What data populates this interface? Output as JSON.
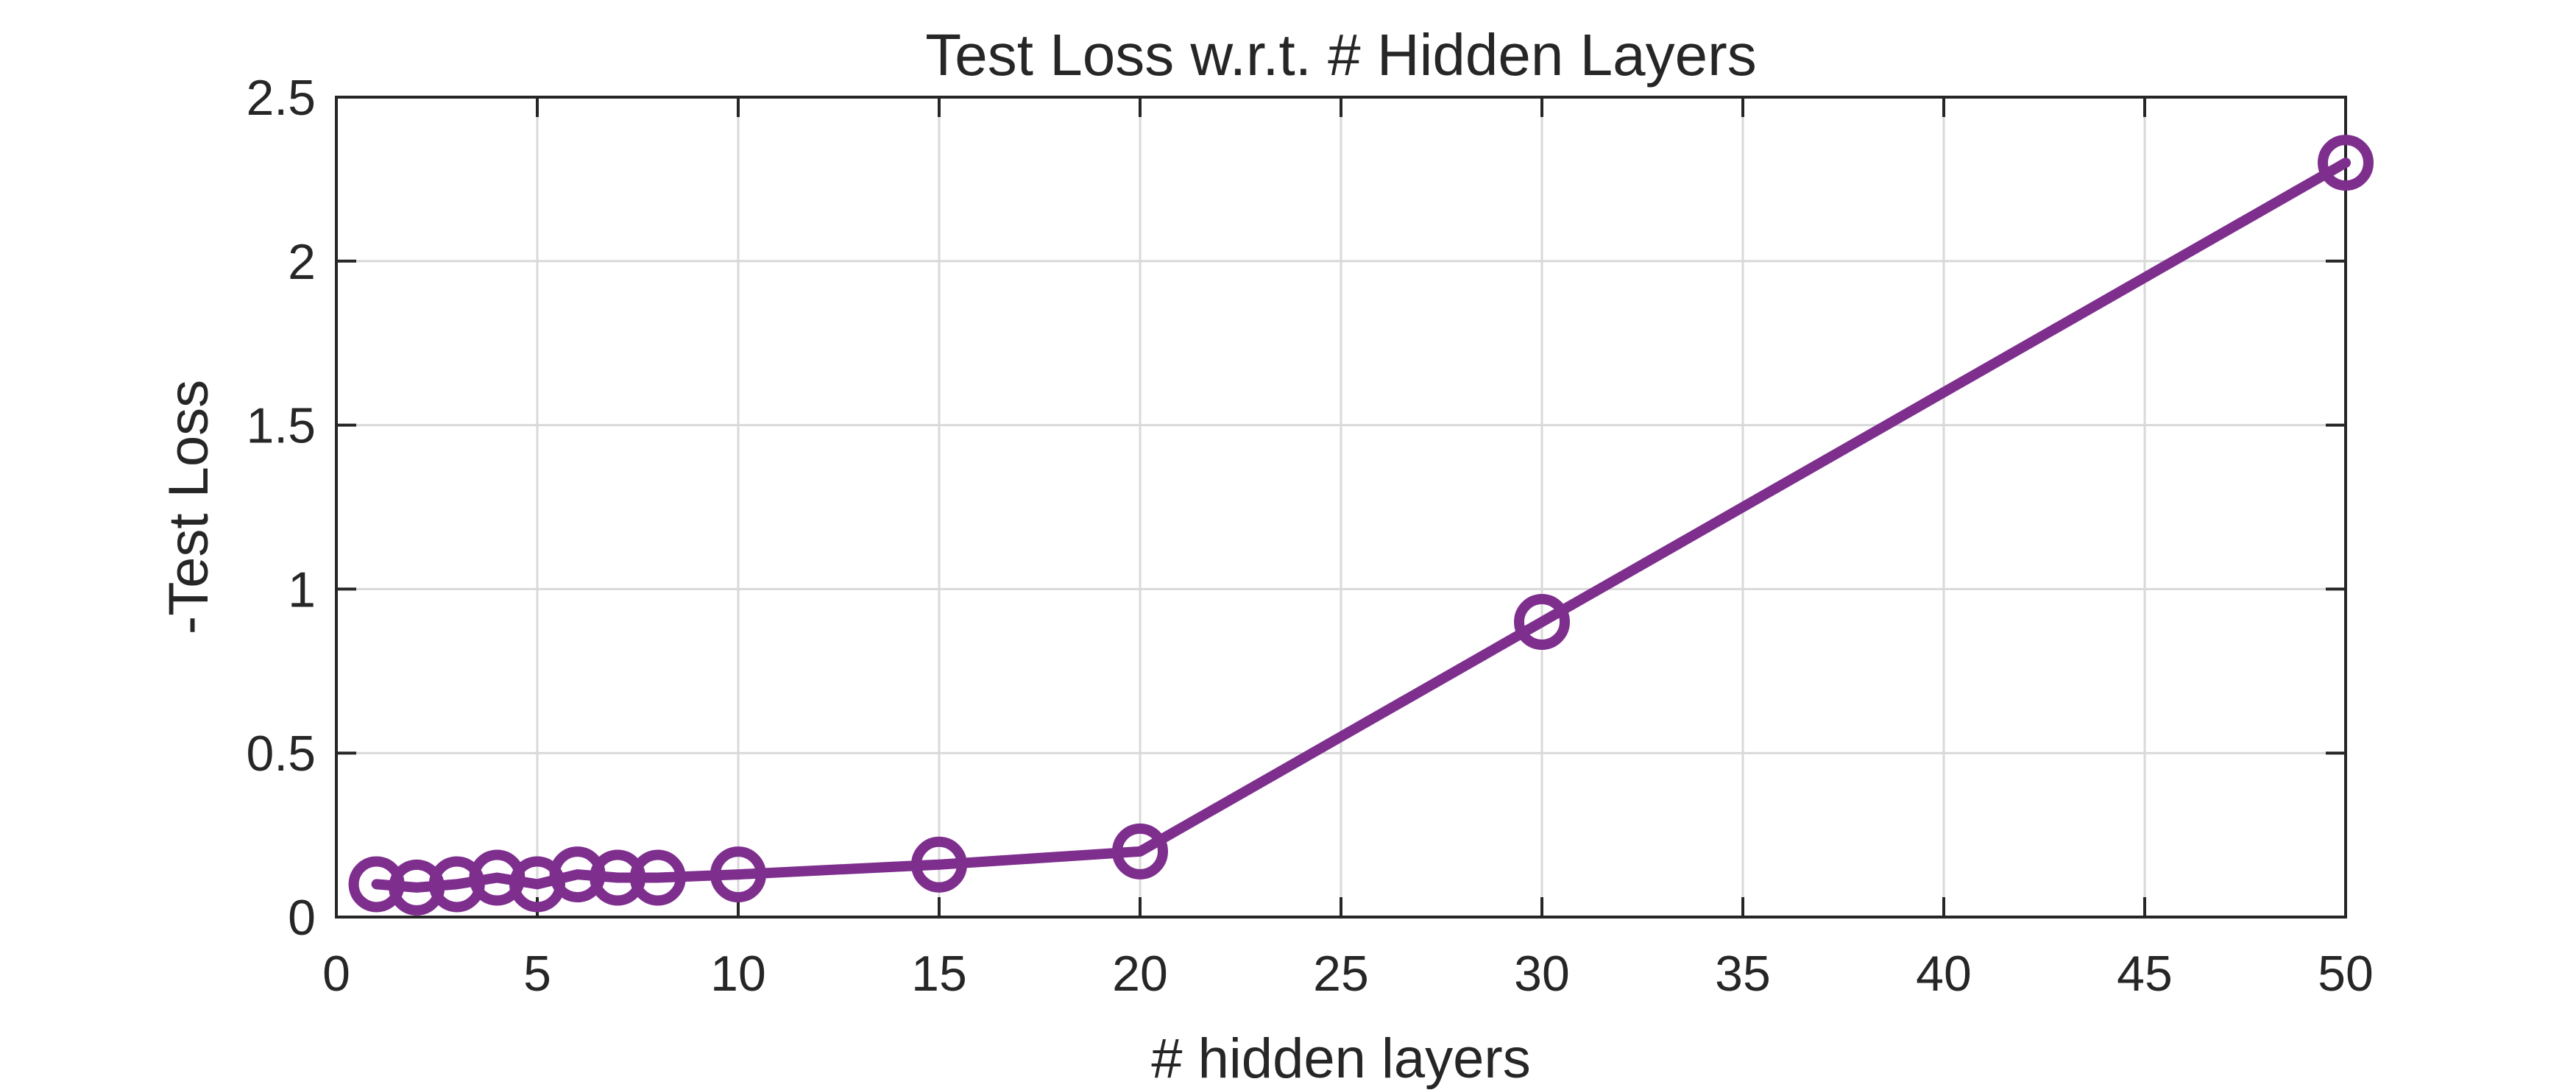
{
  "chart_data": {
    "type": "line",
    "title": "Test Loss w.r.t. # Hidden Layers",
    "xlabel": "# hidden layers",
    "ylabel": "-Test Loss",
    "xlim": [
      0,
      50
    ],
    "ylim": [
      0,
      2.5
    ],
    "xticks": [
      0,
      5,
      10,
      15,
      20,
      25,
      30,
      35,
      40,
      45,
      50
    ],
    "xtick_labels": [
      "0",
      "5",
      "10",
      "15",
      "20",
      "25",
      "30",
      "35",
      "40",
      "45",
      "50"
    ],
    "yticks": [
      0,
      0.5,
      1,
      1.5,
      2,
      2.5
    ],
    "ytick_labels": [
      "0",
      "0.5",
      "1",
      "1.5",
      "2",
      "2.5"
    ],
    "grid": true,
    "series": [
      {
        "name": "-Test Loss",
        "color": "#7E2F8E",
        "marker": "circle",
        "x": [
          1,
          2,
          3,
          4,
          5,
          6,
          7,
          8,
          10,
          15,
          20,
          30,
          50
        ],
        "y": [
          0.1,
          0.09,
          0.1,
          0.12,
          0.1,
          0.13,
          0.12,
          0.12,
          0.13,
          0.16,
          0.2,
          0.9,
          2.3
        ]
      }
    ]
  }
}
